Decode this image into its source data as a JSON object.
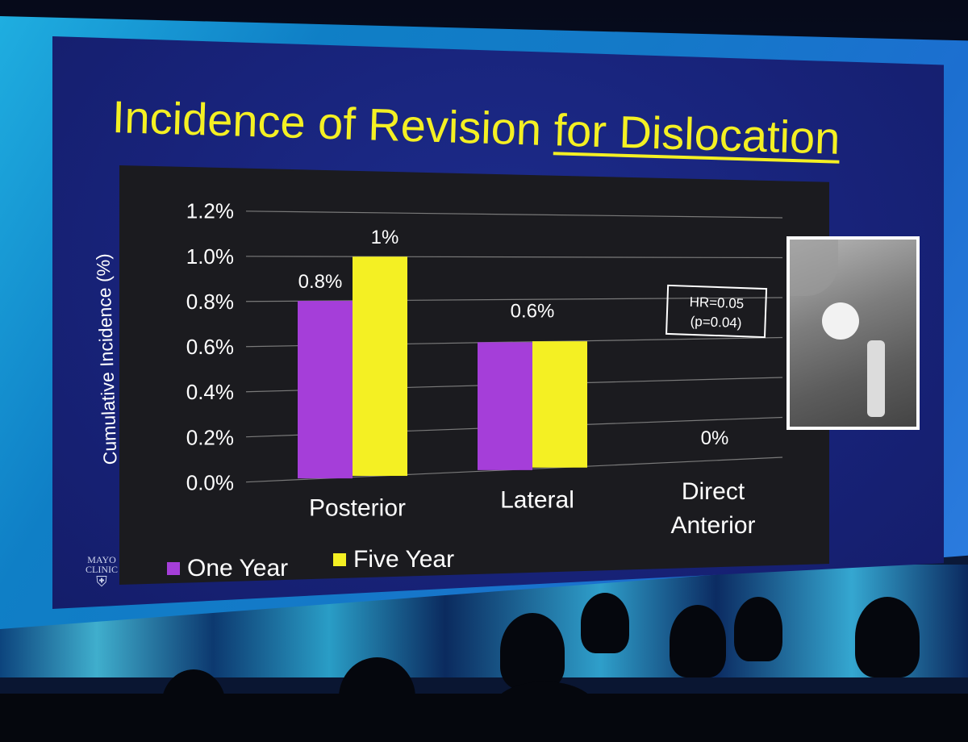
{
  "slide": {
    "title_main": "Incidence of Revision ",
    "title_underlined": "for Dislocation",
    "logo_line1": "MAYO",
    "logo_line2": "CLINIC"
  },
  "annotation": {
    "line1": "HR=0.05",
    "line2": "(p=0.04)"
  },
  "colors": {
    "one_year": "#a53ed9",
    "five_year": "#f4f023",
    "chart_bg": "#1b1b1f",
    "grid": "#7a7a7a",
    "text": "#ffffff"
  },
  "chart_data": {
    "type": "bar",
    "ylabel": "Cumulative Incidence (%)",
    "ylim": [
      0,
      1.2
    ],
    "yticks": [
      "0.0%",
      "0.2%",
      "0.4%",
      "0.6%",
      "0.8%",
      "1.0%",
      "1.2%"
    ],
    "categories": [
      [
        "Posterior"
      ],
      [
        "Lateral"
      ],
      [
        "Direct",
        "Anterior"
      ]
    ],
    "series": [
      {
        "name": "One Year",
        "values": [
          0.8,
          0.6,
          0
        ]
      },
      {
        "name": "Five Year",
        "values": [
          1.0,
          0.6,
          0
        ]
      }
    ],
    "data_labels": [
      "0.8%",
      "1%",
      "0.6%",
      "0%"
    ],
    "legend_position": "bottom-left"
  }
}
